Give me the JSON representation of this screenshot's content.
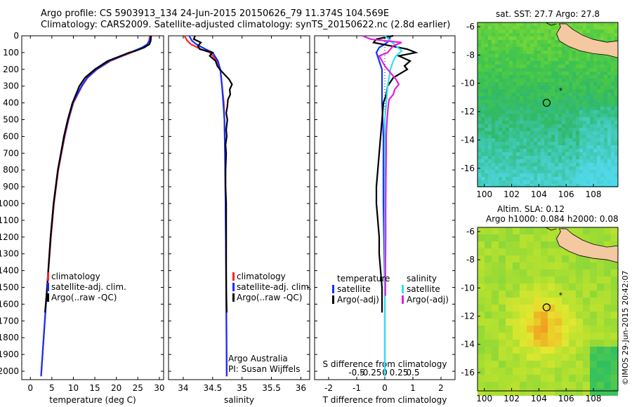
{
  "header": {
    "line1": "Argo profile: CS 5903913_134 24-Jun-2015 20150626_79 11.374S 104.569E",
    "line2": "Climatology: CARS2009. Satellite-adjusted climatology: synTS_20150622.nc (2.8d earlier)"
  },
  "side_label": "©IMOS 29-Jun-2015 20:42:07",
  "chart_data": [
    {
      "type": "line",
      "id": "temperature",
      "xlabel": "temperature (deg C)",
      "xlim": [
        -2,
        31
      ],
      "xticks": [
        0,
        5,
        10,
        15,
        20,
        25,
        30
      ],
      "ylim": [
        2050,
        0
      ],
      "yticks": [
        0,
        100,
        200,
        300,
        400,
        500,
        600,
        700,
        800,
        900,
        1000,
        1100,
        1200,
        1300,
        1400,
        1500,
        1600,
        1700,
        1800,
        1900,
        2000
      ],
      "legend": [
        "climatology",
        "satellite-adj. clim.",
        "Argo(..raw -QC)"
      ],
      "legend_placement": "lower-middle",
      "series": [
        {
          "name": "climatology",
          "color": "#ff2020",
          "depth": [
            0,
            30,
            50,
            70,
            100,
            130,
            150,
            200,
            250,
            300,
            400,
            500,
            600,
            800,
            1000,
            1200,
            1500,
            1800,
            2030
          ],
          "values": [
            27.8,
            27.6,
            27.2,
            26.2,
            23.5,
            20.5,
            18.6,
            15.5,
            13.3,
            12.0,
            10.0,
            8.9,
            8.0,
            6.5,
            5.5,
            4.8,
            3.9,
            3.1,
            2.5
          ]
        },
        {
          "name": "satellite-adj. clim.",
          "color": "#1030ff",
          "depth": [
            0,
            30,
            50,
            70,
            100,
            130,
            150,
            200,
            250,
            300,
            400,
            500,
            600,
            800,
            1000,
            1200,
            1500,
            1800,
            2030
          ],
          "values": [
            28.0,
            27.7,
            27.2,
            26.0,
            23.2,
            20.3,
            18.4,
            15.4,
            13.2,
            11.9,
            9.9,
            8.8,
            7.9,
            6.4,
            5.4,
            4.7,
            3.9,
            3.1,
            2.5
          ]
        },
        {
          "name": "Argo(..raw -QC)",
          "color": "#000000",
          "depth": [
            0,
            30,
            50,
            70,
            90,
            100,
            130,
            150,
            200,
            250,
            300,
            400,
            500,
            600,
            800,
            1000,
            1200,
            1500,
            1650
          ],
          "values": [
            28.1,
            28.0,
            27.7,
            26.5,
            24.5,
            23.0,
            20.0,
            18.0,
            15.0,
            12.7,
            11.4,
            9.8,
            8.7,
            7.8,
            6.4,
            5.4,
            4.7,
            3.9,
            3.4
          ]
        }
      ]
    },
    {
      "type": "line",
      "id": "salinity",
      "xlabel": "salinity",
      "xlim": [
        33.75,
        36.15
      ],
      "xticks": [
        34,
        34.5,
        35,
        35.5,
        36
      ],
      "ylim": [
        2050,
        0
      ],
      "legend": [
        "climatology",
        "satellite-adj. clim.",
        "Argo(..raw -QC)"
      ],
      "annotation": [
        "Argo Australia",
        "PI: Susan Wijffels"
      ],
      "series": [
        {
          "name": "climatology",
          "color": "#ff2020",
          "depth": [
            0,
            30,
            50,
            80,
            100,
            150,
            200,
            300,
            400,
            500,
            700,
            1000,
            1500,
            2030
          ],
          "values": [
            34.02,
            34.07,
            34.13,
            34.3,
            34.45,
            34.58,
            34.63,
            34.66,
            34.69,
            34.7,
            34.71,
            34.72,
            34.73,
            34.74
          ]
        },
        {
          "name": "satellite-adj. clim.",
          "color": "#1030ff",
          "depth": [
            0,
            30,
            50,
            80,
            100,
            150,
            200,
            300,
            400,
            500,
            700,
            1000,
            1500,
            2030
          ],
          "values": [
            34.1,
            34.15,
            34.22,
            34.38,
            34.5,
            34.59,
            34.63,
            34.66,
            34.68,
            34.7,
            34.71,
            34.72,
            34.73,
            34.74
          ]
        },
        {
          "name": "Argo(..raw -QC)",
          "color": "#000000",
          "depth": [
            0,
            20,
            40,
            60,
            80,
            100,
            120,
            150,
            180,
            200,
            230,
            260,
            290,
            320,
            350,
            380,
            420,
            460,
            500,
            560,
            600,
            650,
            700,
            800,
            900,
            1000,
            1200,
            1500,
            1650
          ],
          "values": [
            34.2,
            34.18,
            34.3,
            34.25,
            34.28,
            34.5,
            34.45,
            34.55,
            34.58,
            34.62,
            34.7,
            34.78,
            34.83,
            34.79,
            34.8,
            34.76,
            34.75,
            34.73,
            34.75,
            34.73,
            34.74,
            34.72,
            34.73,
            34.72,
            34.72,
            34.73,
            34.73,
            34.73,
            34.74
          ]
        }
      ]
    },
    {
      "type": "line",
      "id": "differences",
      "xlabel": "T difference from climatology",
      "xlabel_top": "S difference from climatology",
      "xlim": [
        -2.5,
        2.5
      ],
      "xticks": [
        -2,
        -1,
        0,
        1,
        2
      ],
      "xtick_labels": [
        "-2",
        "-1",
        "0",
        "1",
        "2"
      ],
      "xticks_top": [
        -1,
        -0.5,
        0,
        0.5,
        1
      ],
      "xtick_labels_top": [
        "-0.5",
        "-0.25",
        "0",
        "0.25",
        "0.5"
      ],
      "ylim": [
        2050,
        0
      ],
      "legend_temperature": [
        "temperature",
        "satellite",
        "Argo(-adj)"
      ],
      "legend_salinity": [
        "salinity",
        "satellite",
        "Argo(-adj)"
      ],
      "series": [
        {
          "name": "satellite T",
          "color": "#1030ff",
          "depth": [
            0,
            30,
            50,
            70,
            100,
            150,
            200,
            300,
            400,
            600,
            1000,
            1500,
            2030
          ],
          "values": [
            0.2,
            0.15,
            0.0,
            -0.2,
            -0.3,
            -0.2,
            -0.1,
            -0.1,
            -0.1,
            -0.05,
            -0.05,
            0,
            0
          ]
        },
        {
          "name": "Argo T",
          "color": "#000000",
          "depth": [
            0,
            20,
            40,
            60,
            80,
            100,
            120,
            150,
            180,
            200,
            250,
            300,
            350,
            400,
            500,
            600,
            700,
            800,
            900,
            1000,
            1100,
            1200,
            1300,
            1400,
            1500,
            1600,
            1650
          ],
          "values": [
            0.3,
            -0.3,
            -0.4,
            0.2,
            0.8,
            1.1,
            0.5,
            0.9,
            0.7,
            0.8,
            0.3,
            0.1,
            0.05,
            -0.05,
            -0.1,
            -0.15,
            -0.2,
            -0.25,
            -0.3,
            -0.3,
            -0.25,
            -0.2,
            -0.2,
            -0.15,
            -0.1,
            -0.1,
            -0.1
          ]
        },
        {
          "name": "satellite S",
          "color": "#30e0f0",
          "depth": [
            0,
            30,
            60,
            90,
            120,
            150,
            200,
            300,
            400,
            500,
            700,
            1000,
            1500,
            2030
          ],
          "values": [
            0.0,
            0.2,
            0.4,
            0.6,
            0.4,
            0.3,
            0.2,
            0.1,
            0.05,
            0.0,
            0.0,
            0.0,
            0.0,
            0.0
          ]
        },
        {
          "name": "Argo S",
          "color": "#e020e0",
          "depth": [
            0,
            20,
            40,
            60,
            80,
            100,
            120,
            150,
            180,
            200,
            230,
            260,
            290,
            320,
            350,
            380,
            420,
            460,
            500,
            560,
            600,
            700,
            800,
            1000,
            1200,
            1400,
            1550
          ],
          "values": [
            -0.8,
            -0.5,
            0.6,
            0.3,
            0.2,
            0.1,
            -0.2,
            -0.1,
            0.0,
            0.1,
            0.25,
            0.4,
            0.5,
            0.35,
            0.3,
            0.15,
            0.12,
            0.1,
            0.08,
            0.06,
            0.05,
            0.05,
            0.04,
            0.03,
            0.03,
            0.02,
            0.02
          ]
        }
      ]
    },
    {
      "type": "heatmap",
      "id": "sst-map",
      "title": "sat. SST: 27.7  Argo: 27.8",
      "xlim": [
        99.5,
        109.8
      ],
      "ylim": [
        -17.3,
        -5.7
      ],
      "xticks": [
        100,
        102,
        104,
        106,
        108
      ],
      "yticks": [
        -6,
        -8,
        -10,
        -12,
        -14,
        -16
      ],
      "float_position": [
        104.569,
        -11.374
      ],
      "star_position": [
        105.6,
        -10.5
      ],
      "colormap": [
        "#50d8e8",
        "#40c8b0",
        "#30b868",
        "#48c848",
        "#78d838"
      ]
    },
    {
      "type": "heatmap",
      "id": "sla-map",
      "title_lines": [
        "Altim. SLA: 0.12",
        "Argo h1000: 0.084  h2000: 0.08"
      ],
      "xlim": [
        99.5,
        109.8
      ],
      "ylim": [
        -17.3,
        -5.7
      ],
      "xticks": [
        100,
        102,
        104,
        106,
        108
      ],
      "yticks": [
        -6,
        -8,
        -10,
        -12,
        -14,
        -16
      ],
      "float_position": [
        104.569,
        -11.374
      ],
      "star_position": [
        105.6,
        -10.5
      ],
      "colormap": [
        "#30c060",
        "#70d040",
        "#b0e030",
        "#e8e830",
        "#f0a020"
      ]
    }
  ]
}
